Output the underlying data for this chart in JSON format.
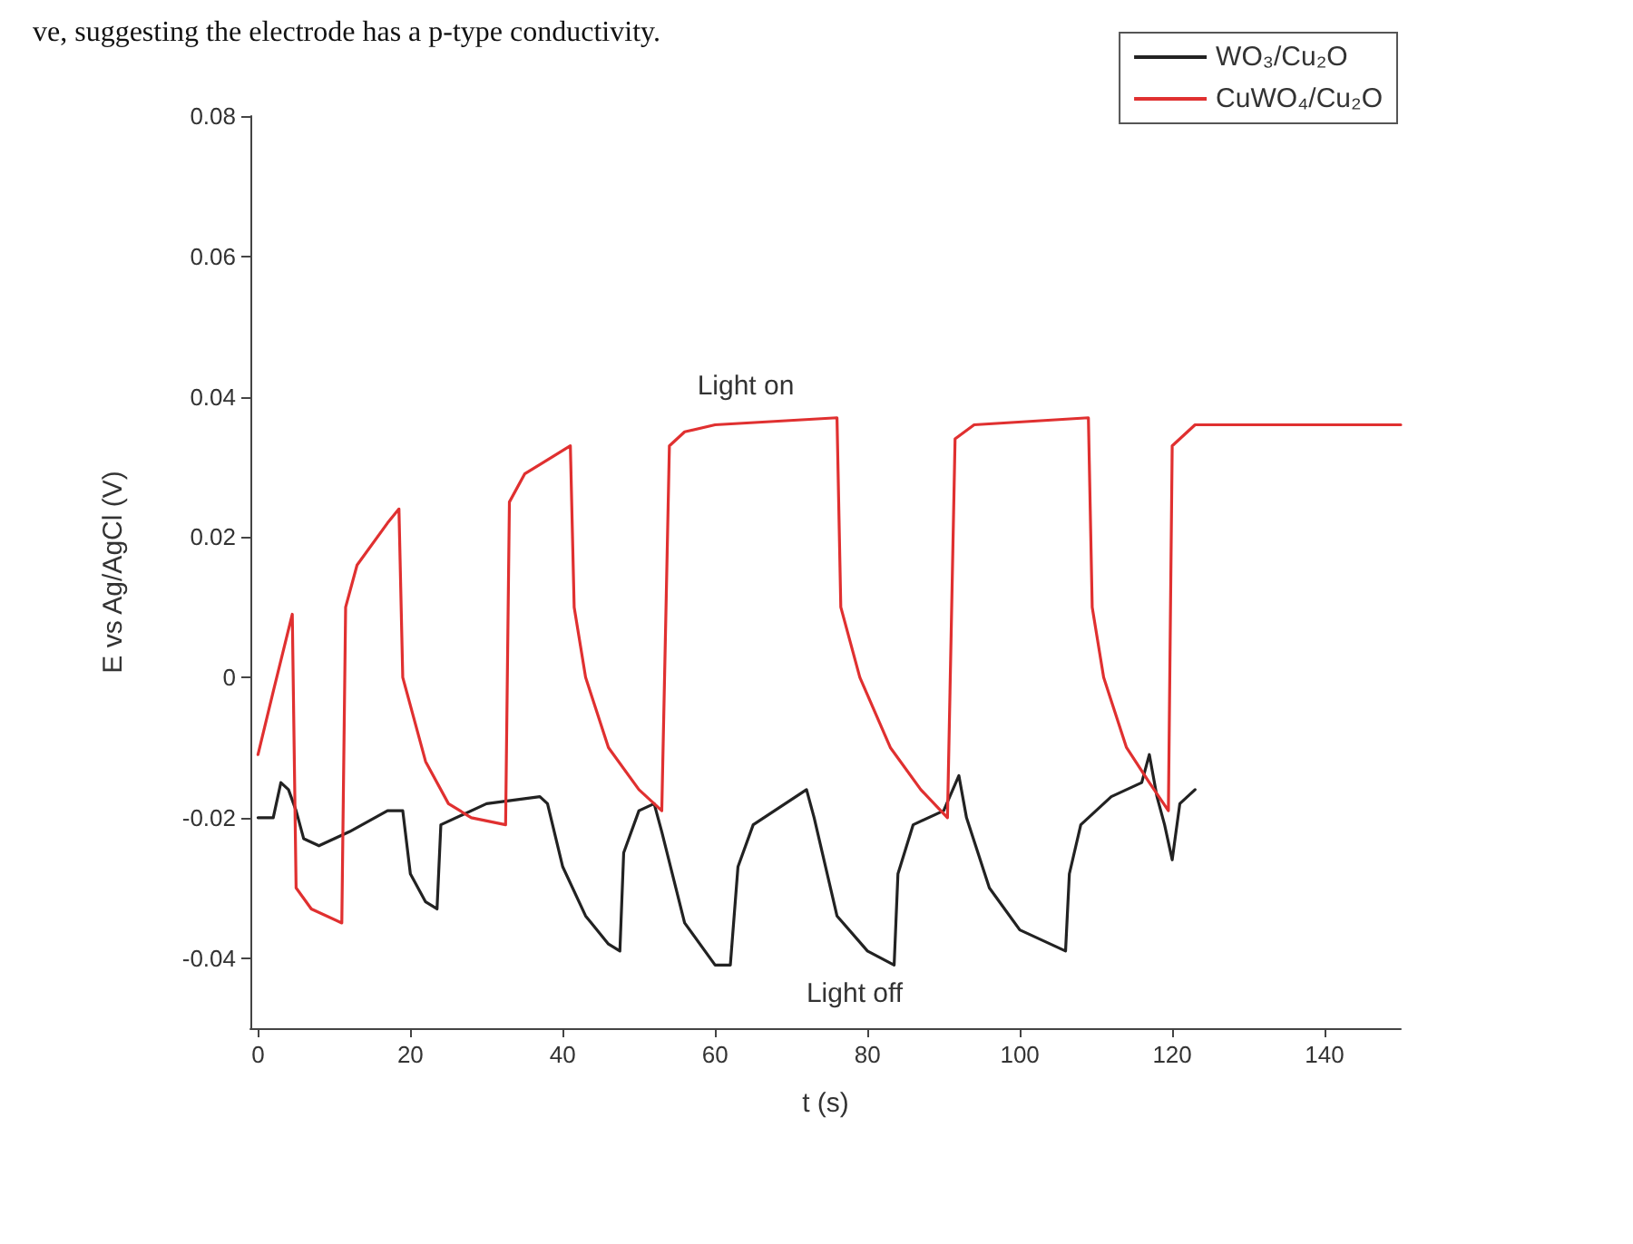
{
  "chart_data": {
    "type": "line",
    "xlabel": "t (s)",
    "ylabel": "E vs Ag/AgCl (V)",
    "xlim": [
      -1,
      150
    ],
    "xticks": [
      0,
      20,
      40,
      60,
      80,
      100,
      120,
      140
    ],
    "ylim": [
      -0.05,
      0.08
    ],
    "yticks": [
      -0.04,
      -0.02,
      0,
      0.02,
      0.04,
      0.06,
      0.08
    ],
    "grid": false,
    "legend": "top right",
    "marker": "none",
    "line_style": "solid",
    "annotations": [
      "ve, suggesting the electrode has a p-type conductivity.",
      "Light on",
      "Light off"
    ],
    "series": [
      {
        "name": "WO₃/Cu₂O",
        "color": "#222222",
        "x": [
          0,
          2,
          3,
          4,
          5,
          6,
          8,
          12,
          17,
          19,
          20,
          22,
          23.5,
          24,
          30,
          37,
          38,
          40,
          43,
          46,
          47.5,
          48,
          50,
          52,
          53,
          56,
          60,
          62,
          63,
          65,
          72,
          73,
          76,
          80,
          83.5,
          84,
          86,
          90,
          92,
          93,
          96,
          100,
          106,
          106.5,
          108,
          112,
          116,
          117,
          118,
          119,
          120,
          121,
          123
        ],
        "values": [
          -0.02,
          -0.02,
          -0.015,
          -0.016,
          -0.019,
          -0.023,
          -0.024,
          -0.022,
          -0.019,
          -0.019,
          -0.028,
          -0.032,
          -0.033,
          -0.021,
          -0.018,
          -0.017,
          -0.018,
          -0.027,
          -0.034,
          -0.038,
          -0.039,
          -0.025,
          -0.019,
          -0.018,
          -0.022,
          -0.035,
          -0.041,
          -0.041,
          -0.027,
          -0.021,
          -0.016,
          -0.02,
          -0.034,
          -0.039,
          -0.041,
          -0.028,
          -0.021,
          -0.019,
          -0.014,
          -0.02,
          -0.03,
          -0.036,
          -0.039,
          -0.028,
          -0.021,
          -0.017,
          -0.015,
          -0.011,
          -0.017,
          -0.021,
          -0.026,
          -0.018,
          -0.016
        ]
      },
      {
        "name": "CuWO₄/Cu₂O",
        "color": "#e03030",
        "x": [
          0,
          2,
          4.5,
          5,
          7,
          11,
          11.5,
          13,
          17,
          18.5,
          19,
          22,
          25,
          28,
          32.5,
          33,
          35,
          41,
          41.5,
          43,
          46,
          50,
          53,
          54,
          56,
          60,
          76,
          76.5,
          79,
          83,
          87,
          90.5,
          91.5,
          94,
          109,
          109.5,
          111,
          114,
          117,
          119.5,
          120,
          123,
          150
        ],
        "values": [
          -0.011,
          -0.002,
          0.009,
          -0.03,
          -0.033,
          -0.035,
          0.01,
          0.016,
          0.022,
          0.024,
          0.0,
          -0.012,
          -0.018,
          -0.02,
          -0.021,
          0.025,
          0.029,
          0.033,
          0.01,
          0.0,
          -0.01,
          -0.016,
          -0.019,
          0.033,
          0.035,
          0.036,
          0.037,
          0.01,
          0.0,
          -0.01,
          -0.016,
          -0.02,
          0.034,
          0.036,
          0.037,
          0.01,
          0.0,
          -0.01,
          -0.015,
          -0.019,
          0.033,
          0.036,
          0.036
        ]
      }
    ]
  }
}
